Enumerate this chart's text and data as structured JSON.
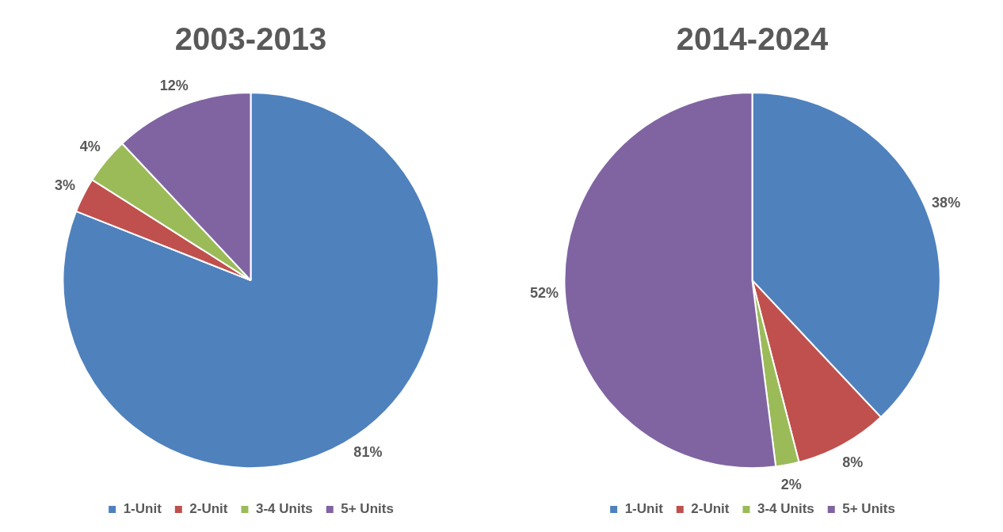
{
  "chart_data": [
    {
      "type": "pie",
      "title": "2003-2013",
      "categories": [
        "1-Unit",
        "2-Unit",
        "3-4 Units",
        "5+ Units"
      ],
      "values": [
        81,
        3,
        4,
        12
      ],
      "colors": [
        "#4f81bd",
        "#c0504d",
        "#9bbb59",
        "#8064a2"
      ],
      "value_labels": [
        "81%",
        "3%",
        "4%",
        "12%"
      ],
      "legend": "bottom"
    },
    {
      "type": "pie",
      "title": "2014-2024",
      "categories": [
        "1-Unit",
        "2-Unit",
        "3-4 Units",
        "5+ Units"
      ],
      "values": [
        38,
        8,
        2,
        52
      ],
      "colors": [
        "#4f81bd",
        "#c0504d",
        "#9bbb59",
        "#8064a2"
      ],
      "value_labels": [
        "38%",
        "8%",
        "2%",
        "52%"
      ],
      "legend": "bottom"
    }
  ]
}
